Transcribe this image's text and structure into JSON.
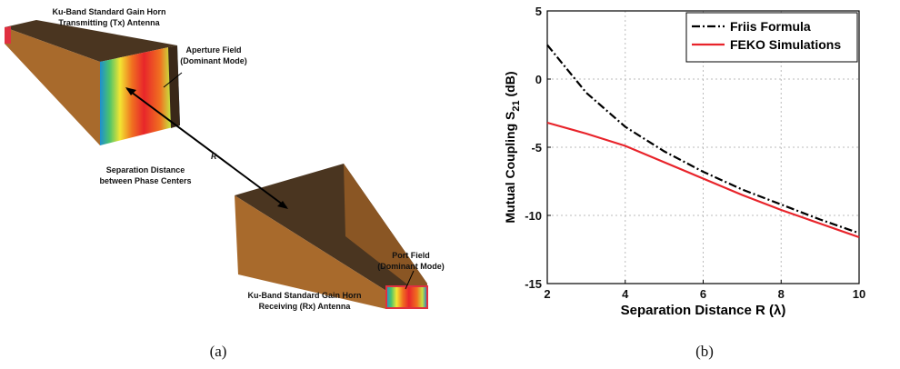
{
  "diagram": {
    "tx_title": [
      "Ku-Band Standard Gain Horn",
      "Transmitting (Tx) Antenna"
    ],
    "aperture_label": [
      "Aperture Field",
      "(Dominant Mode)"
    ],
    "distance_symbol": "R",
    "distance_label": [
      "Separation Distance",
      "between Phase Centers"
    ],
    "port_label": [
      "Port Field",
      "(Dominant Mode)"
    ],
    "rx_title": [
      "Ku-Band Standard Gain Horn",
      "Receiving (Rx) Antenna"
    ],
    "caption": "(a)"
  },
  "caption_b": "(b)",
  "chart_data": {
    "type": "line",
    "x_label": "Separation Distance R (λ)",
    "y_label": {
      "main": "Mutual Coupling S",
      "subscript": "21",
      "unit": " (dB)"
    },
    "xlim": [
      2,
      10
    ],
    "ylim": [
      -15,
      5
    ],
    "xticks": [
      2,
      4,
      6,
      8,
      10
    ],
    "yticks": [
      -15,
      -10,
      -5,
      0,
      5
    ],
    "grid": true,
    "legend": "upper right",
    "series": [
      {
        "name": "Friis Formula",
        "color": "#000000",
        "dash": "dashdot",
        "x": [
          2,
          3,
          4,
          5,
          6,
          7,
          8,
          9,
          10
        ],
        "values": [
          2.5,
          -1.0,
          -3.5,
          -5.3,
          -6.8,
          -8.1,
          -9.2,
          -10.3,
          -11.3
        ]
      },
      {
        "name": "FEKO Simulations",
        "color": "#e8232a",
        "dash": "solid",
        "x": [
          2,
          3,
          4,
          5,
          6,
          7,
          8,
          9,
          10
        ],
        "values": [
          -3.2,
          -4.0,
          -4.9,
          -6.1,
          -7.3,
          -8.5,
          -9.6,
          -10.6,
          -11.6
        ]
      }
    ]
  }
}
